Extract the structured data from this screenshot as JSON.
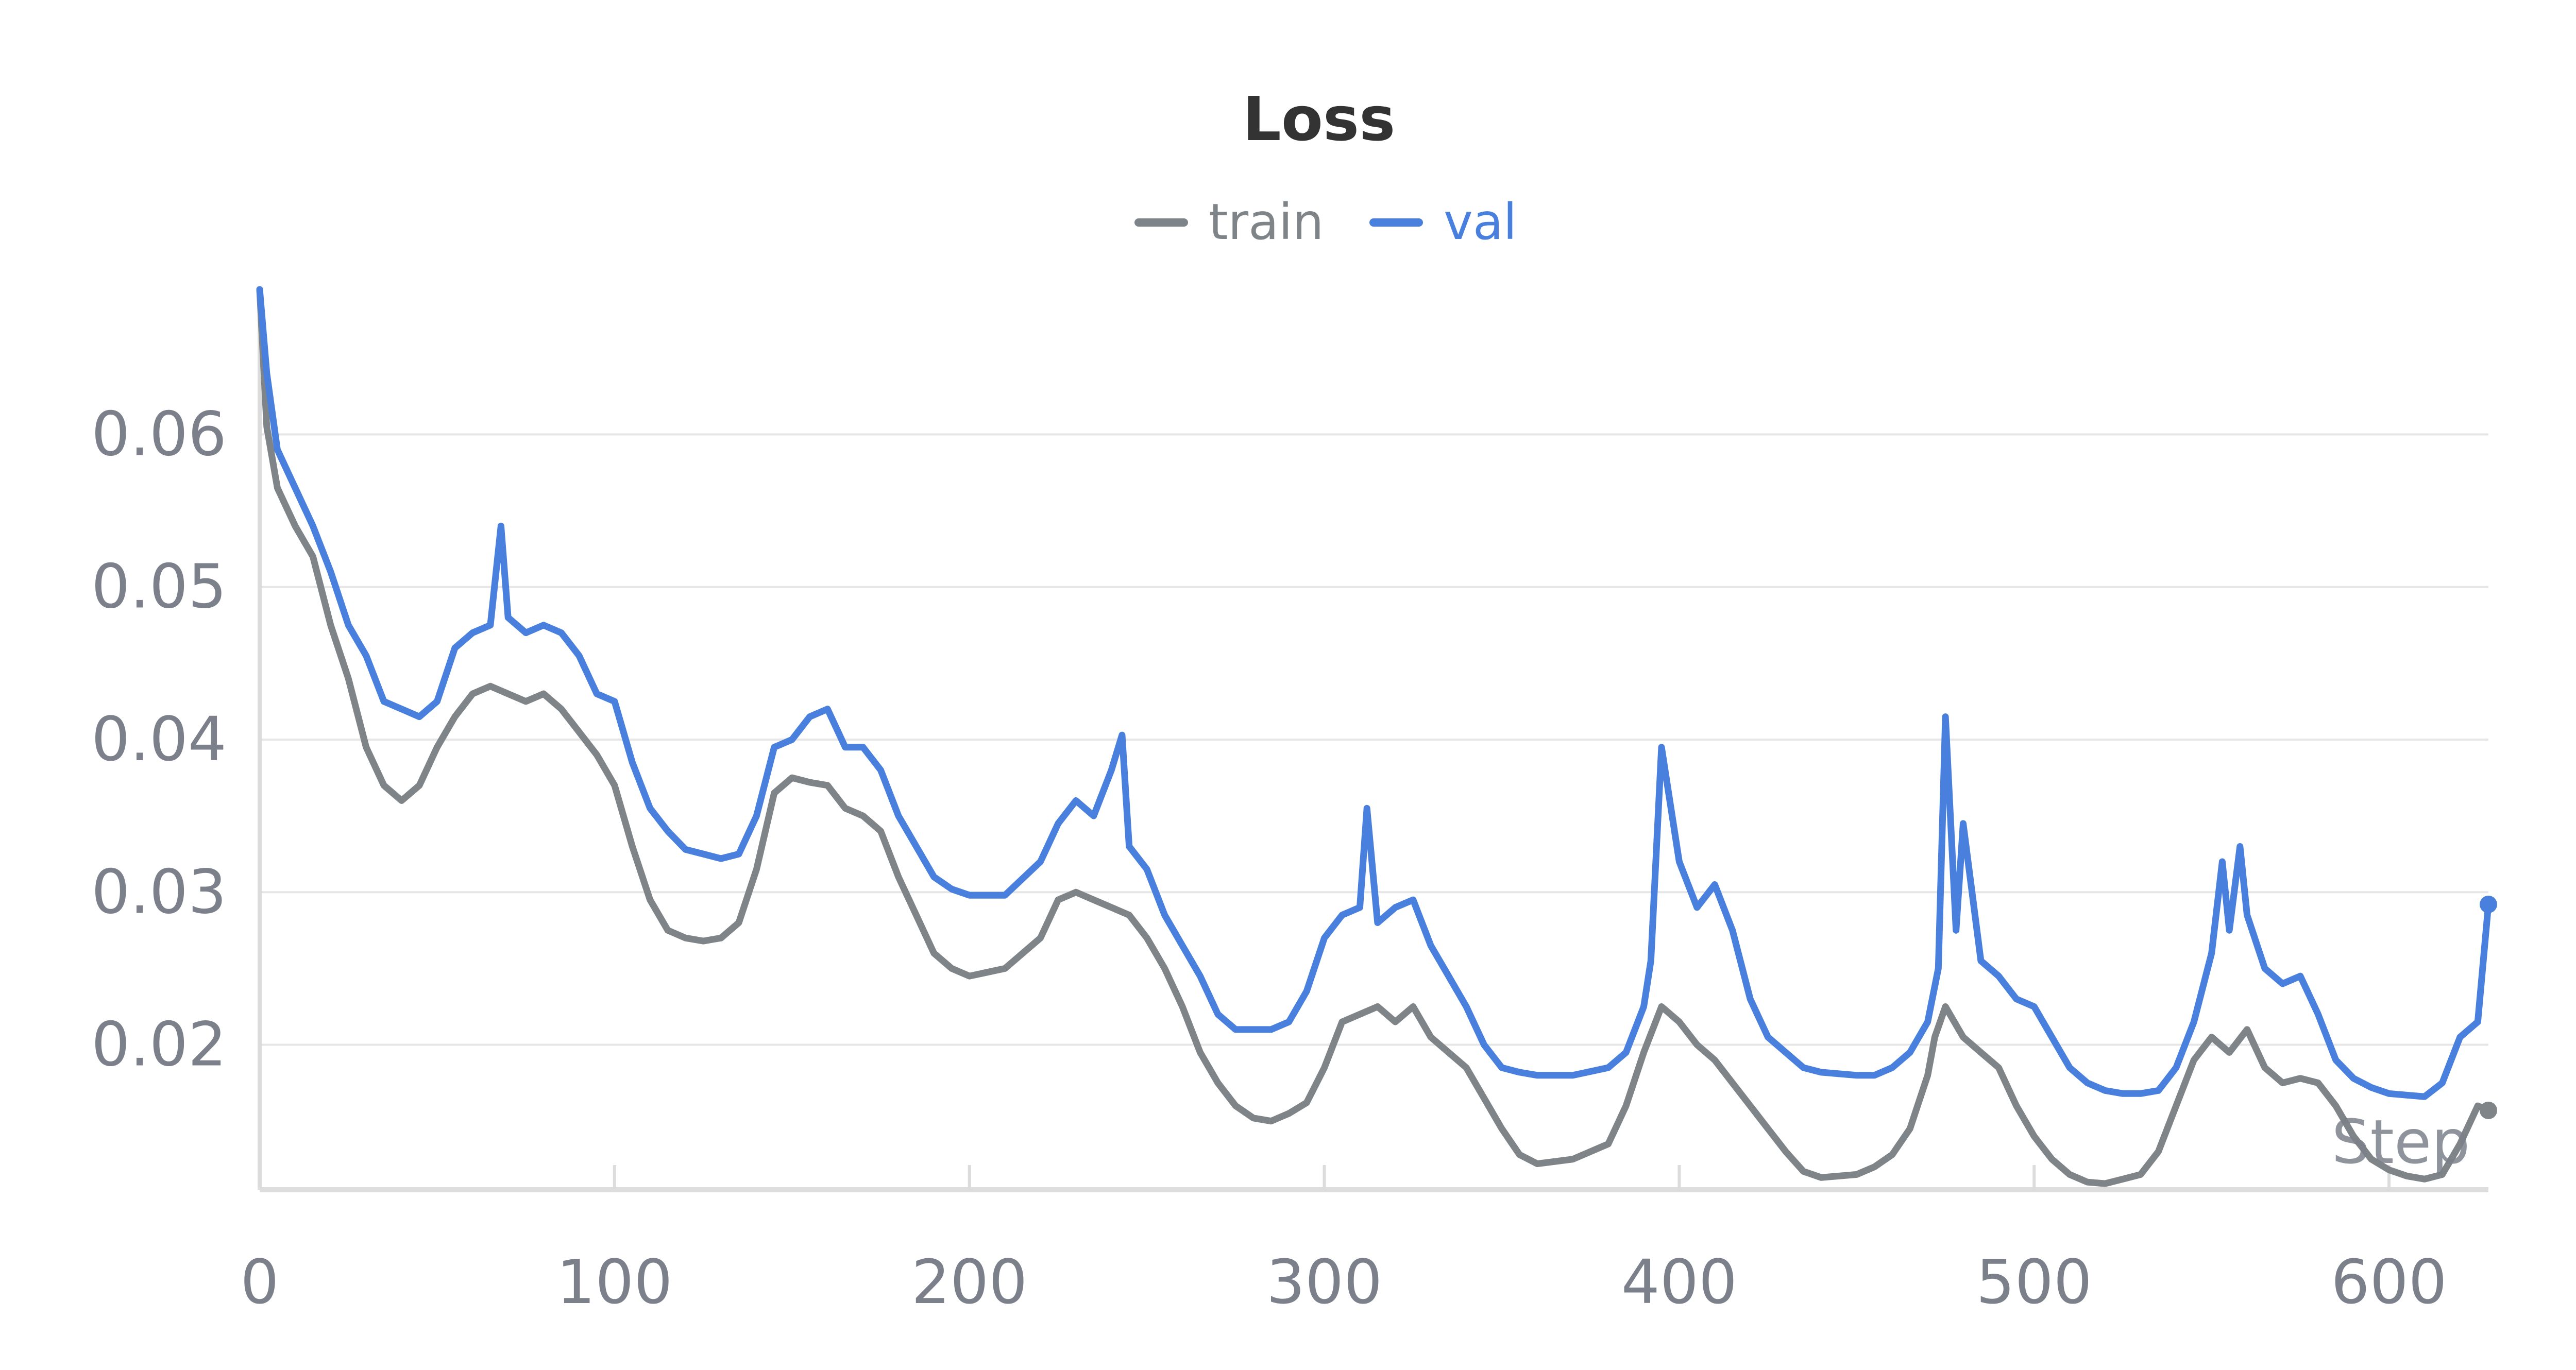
{
  "chart_data": {
    "type": "line",
    "title": "Loss",
    "xlabel": "Step",
    "ylabel": "",
    "xlim": [
      0,
      628
    ],
    "ylim": [
      0.0105,
      0.0695
    ],
    "x_ticks": [
      0,
      100,
      200,
      300,
      400,
      500,
      600
    ],
    "y_ticks": [
      0.02,
      0.03,
      0.04,
      0.05,
      0.06
    ],
    "y_tick_labels": [
      "0.02",
      "0.03",
      "0.04",
      "0.05",
      "0.06"
    ],
    "grid": true,
    "legend_position": "top-center",
    "series": [
      {
        "name": "train",
        "color": "#7f8488",
        "x": [
          0,
          2,
          5,
          10,
          15,
          20,
          25,
          30,
          35,
          40,
          45,
          50,
          55,
          60,
          65,
          70,
          75,
          80,
          85,
          90,
          95,
          100,
          105,
          110,
          115,
          120,
          125,
          130,
          135,
          140,
          145,
          150,
          155,
          160,
          165,
          170,
          175,
          180,
          185,
          190,
          195,
          200,
          210,
          220,
          225,
          230,
          235,
          240,
          245,
          250,
          255,
          260,
          265,
          270,
          275,
          280,
          285,
          290,
          295,
          300,
          305,
          310,
          315,
          320,
          325,
          330,
          335,
          340,
          345,
          350,
          355,
          360,
          370,
          380,
          385,
          390,
          395,
          400,
          405,
          410,
          415,
          420,
          425,
          430,
          435,
          440,
          450,
          455,
          460,
          465,
          470,
          472,
          475,
          480,
          485,
          490,
          495,
          500,
          505,
          510,
          515,
          520,
          525,
          530,
          535,
          540,
          545,
          550,
          555,
          560,
          565,
          570,
          575,
          580,
          585,
          590,
          595,
          600,
          605,
          610,
          615,
          620,
          625,
          628
        ],
        "values": [
          0.0695,
          0.0605,
          0.0565,
          0.054,
          0.052,
          0.0475,
          0.044,
          0.0395,
          0.037,
          0.036,
          0.037,
          0.0395,
          0.0415,
          0.043,
          0.0435,
          0.043,
          0.0425,
          0.043,
          0.042,
          0.0405,
          0.039,
          0.037,
          0.033,
          0.0295,
          0.0275,
          0.027,
          0.0268,
          0.027,
          0.028,
          0.0315,
          0.0365,
          0.0375,
          0.0372,
          0.037,
          0.0355,
          0.035,
          0.034,
          0.031,
          0.0285,
          0.026,
          0.025,
          0.0245,
          0.025,
          0.027,
          0.0295,
          0.03,
          0.0295,
          0.029,
          0.0285,
          0.027,
          0.025,
          0.0225,
          0.0195,
          0.0175,
          0.016,
          0.0152,
          0.015,
          0.0155,
          0.0162,
          0.0185,
          0.0215,
          0.022,
          0.0225,
          0.0215,
          0.0225,
          0.0205,
          0.0195,
          0.0185,
          0.0165,
          0.0145,
          0.0128,
          0.0122,
          0.0125,
          0.0135,
          0.016,
          0.0195,
          0.0225,
          0.0215,
          0.02,
          0.019,
          0.0175,
          0.016,
          0.0145,
          0.013,
          0.0117,
          0.0113,
          0.0115,
          0.012,
          0.0128,
          0.0145,
          0.018,
          0.0205,
          0.0225,
          0.0205,
          0.0195,
          0.0185,
          0.016,
          0.014,
          0.0125,
          0.0115,
          0.011,
          0.0109,
          0.0112,
          0.0115,
          0.013,
          0.016,
          0.019,
          0.0205,
          0.0195,
          0.021,
          0.0185,
          0.0175,
          0.0178,
          0.0175,
          0.016,
          0.014,
          0.0125,
          0.0118,
          0.0114,
          0.0112,
          0.0115,
          0.0135,
          0.016,
          0.0157
        ]
      },
      {
        "name": "val",
        "color": "#4a80dd",
        "x": [
          0,
          2,
          5,
          10,
          15,
          20,
          25,
          30,
          35,
          40,
          45,
          50,
          55,
          60,
          65,
          68,
          70,
          75,
          80,
          85,
          90,
          95,
          100,
          105,
          110,
          115,
          120,
          125,
          130,
          135,
          140,
          145,
          150,
          155,
          160,
          165,
          170,
          175,
          180,
          185,
          190,
          195,
          200,
          210,
          220,
          225,
          230,
          235,
          240,
          243,
          245,
          250,
          255,
          260,
          265,
          270,
          275,
          280,
          285,
          290,
          295,
          300,
          305,
          310,
          312,
          315,
          320,
          325,
          330,
          335,
          340,
          345,
          350,
          355,
          360,
          370,
          380,
          385,
          390,
          392,
          395,
          400,
          405,
          410,
          415,
          420,
          425,
          430,
          435,
          440,
          450,
          455,
          460,
          465,
          470,
          473,
          475,
          478,
          480,
          485,
          490,
          495,
          500,
          505,
          510,
          515,
          520,
          525,
          530,
          535,
          540,
          545,
          550,
          553,
          555,
          558,
          560,
          565,
          570,
          575,
          580,
          585,
          590,
          595,
          600,
          605,
          610,
          615,
          620,
          625,
          628
        ],
        "values": [
          0.0695,
          0.064,
          0.059,
          0.0565,
          0.054,
          0.051,
          0.0475,
          0.0455,
          0.0425,
          0.042,
          0.0415,
          0.0425,
          0.046,
          0.047,
          0.0475,
          0.054,
          0.048,
          0.047,
          0.0475,
          0.047,
          0.0455,
          0.043,
          0.0425,
          0.0385,
          0.0355,
          0.034,
          0.0328,
          0.0325,
          0.0322,
          0.0325,
          0.035,
          0.0395,
          0.04,
          0.0415,
          0.042,
          0.0395,
          0.0395,
          0.038,
          0.035,
          0.033,
          0.031,
          0.0302,
          0.0298,
          0.0298,
          0.032,
          0.0345,
          0.036,
          0.035,
          0.038,
          0.0403,
          0.033,
          0.0315,
          0.0285,
          0.0265,
          0.0245,
          0.022,
          0.021,
          0.021,
          0.021,
          0.0215,
          0.0235,
          0.027,
          0.0285,
          0.029,
          0.0355,
          0.028,
          0.029,
          0.0295,
          0.0265,
          0.0245,
          0.0225,
          0.02,
          0.0185,
          0.0182,
          0.018,
          0.018,
          0.0185,
          0.0195,
          0.0225,
          0.0255,
          0.0395,
          0.032,
          0.029,
          0.0305,
          0.0275,
          0.023,
          0.0205,
          0.0195,
          0.0185,
          0.0182,
          0.018,
          0.018,
          0.0185,
          0.0195,
          0.0215,
          0.025,
          0.0415,
          0.0275,
          0.0345,
          0.0255,
          0.0245,
          0.023,
          0.0225,
          0.0205,
          0.0185,
          0.0175,
          0.017,
          0.0168,
          0.0168,
          0.017,
          0.0185,
          0.0215,
          0.026,
          0.032,
          0.0275,
          0.033,
          0.0285,
          0.025,
          0.024,
          0.0245,
          0.022,
          0.019,
          0.0178,
          0.0172,
          0.0168,
          0.0167,
          0.0166,
          0.0175,
          0.0205,
          0.0215,
          0.0292
        ]
      }
    ]
  },
  "legend": {
    "train_label": "train",
    "val_label": "val"
  }
}
